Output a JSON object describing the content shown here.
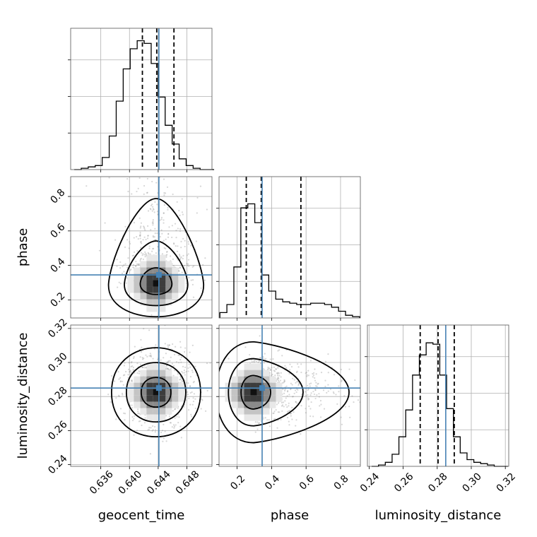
{
  "chart_data": {
    "type": "corner",
    "parameters": [
      {
        "name": "geocent_time",
        "range": [
          0.6318,
          0.6515
        ],
        "ticks": [
          "0.636",
          "0.640",
          "0.644",
          "0.648"
        ],
        "tick_values": [
          0.636,
          0.64,
          0.644,
          0.648
        ],
        "truth": 0.6441,
        "quantiles": [
          0.6418,
          0.6438,
          0.6462
        ],
        "hist_edges_start": 0.6323,
        "hist_bin_width": 0.000975,
        "hist_counts": [
          0.0,
          0.01,
          0.02,
          0.03,
          0.09,
          0.25,
          0.51,
          0.75,
          0.9,
          0.96,
          0.94,
          0.79,
          0.54,
          0.33,
          0.19,
          0.08,
          0.03,
          0.01,
          0.0,
          0.0
        ]
      },
      {
        "name": "phase",
        "range": [
          0.095,
          0.915
        ],
        "ticks": [
          "0.2",
          "0.4",
          "0.6",
          "0.8"
        ],
        "tick_values": [
          0.2,
          0.4,
          0.6,
          0.8
        ],
        "truth": 0.345,
        "quantiles": [
          0.253,
          0.34,
          0.57
        ],
        "hist_edges_start": 0.1,
        "hist_bin_width": 0.0405,
        "hist_counts": [
          0.04,
          0.1,
          0.38,
          0.82,
          0.85,
          0.71,
          0.32,
          0.2,
          0.14,
          0.12,
          0.11,
          0.1,
          0.1,
          0.11,
          0.11,
          0.1,
          0.08,
          0.05,
          0.02,
          0.01
        ]
      },
      {
        "name": "luminosity_distance",
        "range": [
          0.239,
          0.322
        ],
        "ticks": [
          "0.24",
          "0.26",
          "0.28",
          "0.30",
          "0.32"
        ],
        "tick_values": [
          0.24,
          0.26,
          0.28,
          0.3,
          0.32
        ],
        "truth": 0.285,
        "quantiles": [
          0.27,
          0.2805,
          0.29
        ],
        "hist_edges_start": 0.2415,
        "hist_bin_width": 0.004,
        "hist_counts": [
          0.0,
          0.01,
          0.03,
          0.09,
          0.22,
          0.42,
          0.68,
          0.83,
          0.92,
          0.91,
          0.68,
          0.43,
          0.22,
          0.1,
          0.05,
          0.03,
          0.02,
          0.01,
          0.0,
          0.0
        ]
      }
    ],
    "pair_panels": [
      {
        "x": "geocent_time",
        "y": "phase"
      },
      {
        "x": "geocent_time",
        "y": "luminosity_distance"
      },
      {
        "x": "phase",
        "y": "luminosity_distance"
      }
    ],
    "grid": true,
    "contour_levels": 3
  }
}
